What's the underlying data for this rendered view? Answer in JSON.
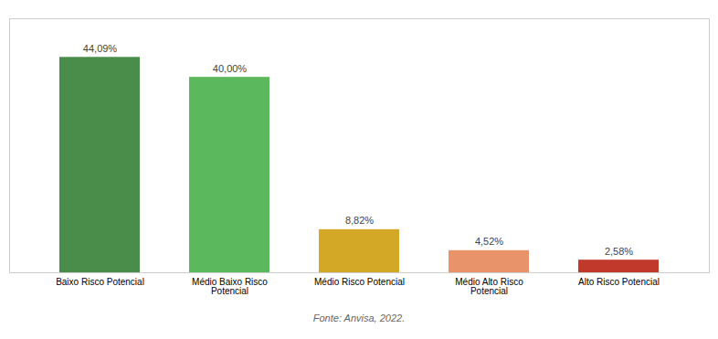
{
  "chart_data": {
    "type": "bar",
    "categories": [
      "Baixo Risco Potencial",
      "Médio Baixo Risco Potencial",
      "Médio Risco Potencial",
      "Médio Alto Risco Potencial",
      "Alto Risco Potencial"
    ],
    "values": [
      44.09,
      40.0,
      8.82,
      4.52,
      2.58
    ],
    "value_labels": [
      "44,09%",
      "40,00%",
      "8,82%",
      "4,52%",
      "2,58%"
    ],
    "colors": [
      "#4a8c4a",
      "#5cb85c",
      "#d4a827",
      "#e8936a",
      "#c0392b"
    ],
    "ylim": [
      0,
      52
    ],
    "data_labels": true,
    "tick_labels": "x",
    "grid": false,
    "annotation": "Fonte: Anvisa, 2022."
  }
}
